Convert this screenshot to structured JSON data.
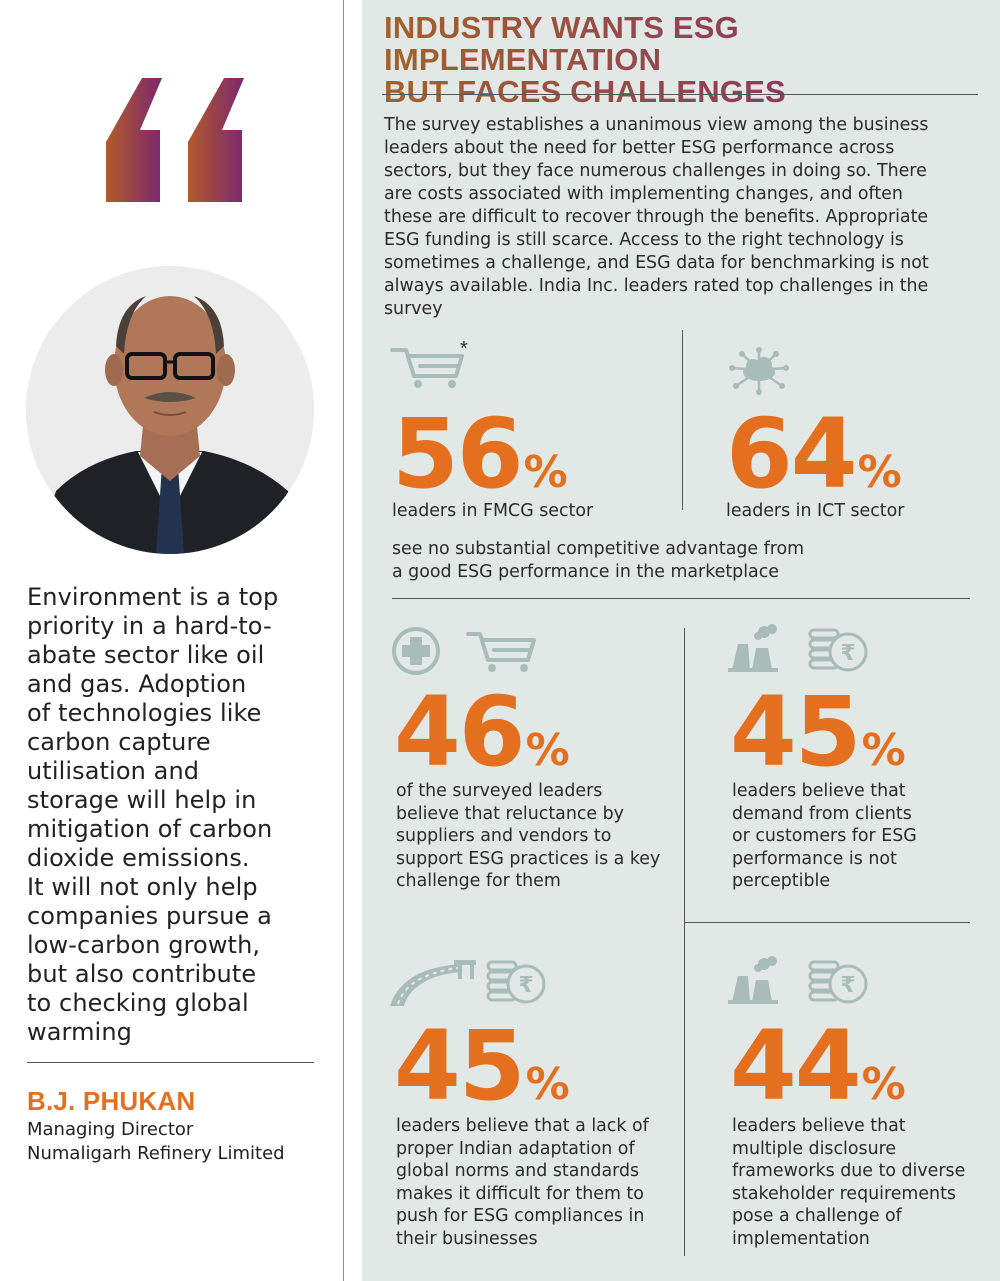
{
  "quote": {
    "mark_colors": {
      "start": "#b35a2a",
      "end": "#7b2770"
    },
    "lines": [
      "Environment is a top",
      "priority in a hard-to-",
      "abate sector like oil",
      "and gas. Adoption",
      "of technologies like",
      "carbon capture",
      "utilisation and",
      "storage will help in",
      "mitigation of carbon",
      "dioxide emissions.",
      "It will not only help",
      "companies pursue a",
      "low-carbon growth,",
      "but also contribute",
      "to checking global",
      "warming"
    ]
  },
  "author": {
    "name": "B.J. PHUKAN",
    "title": "Managing Director",
    "company": "Numaligarh Refinery Limited"
  },
  "heading": {
    "line1": "INDUSTRY WANTS ESG IMPLEMENTATION",
    "line2": "BUT FACES CHALLENGES"
  },
  "intro_lines": [
    "The survey establishes a unanimous view among the business",
    "leaders about the need for better ESG performance across",
    "sectors, but they face numerous challenges in doing so. There",
    "are costs associated with implementing changes, and often",
    "these are difficult to recover through the benefits. Appropriate",
    "ESG funding is still scarce. Access to the right technology is",
    "sometimes a challenge, and ESG data for benchmarking is not",
    "always available. India Inc. leaders rated top challenges in the",
    "survey"
  ],
  "stats": {
    "fmcg": {
      "value": "56",
      "unit": "%",
      "label": "leaders in FMCG sector",
      "asterisk": "*",
      "icons": [
        "cart-icon"
      ]
    },
    "ict": {
      "value": "64",
      "unit": "%",
      "label": "leaders in ICT sector",
      "icons": [
        "cloud-network-icon"
      ]
    },
    "shared_note_lines": [
      "see no substantial competitive advantage from",
      "a good ESG performance in the marketplace"
    ],
    "suppliers": {
      "value": "46",
      "unit": "%",
      "icons": [
        "medical-plus-icon",
        "cart-icon"
      ],
      "lines": [
        "of the surveyed leaders",
        "believe that reluctance by",
        "suppliers and vendors to",
        "support ESG practices is a key",
        "challenge for them"
      ]
    },
    "demand": {
      "value": "45",
      "unit": "%",
      "icons": [
        "factory-icon",
        "rupee-coins-icon"
      ],
      "lines": [
        "leaders believe that",
        "demand from clients",
        "or customers for ESG",
        "performance is not",
        "perceptible"
      ]
    },
    "adaptation": {
      "value": "45",
      "unit": "%",
      "icons": [
        "road-bridge-icon",
        "rupee-coins-icon"
      ],
      "lines": [
        "leaders believe that a lack of",
        "proper Indian adaptation of",
        "global norms and standards",
        "makes it difficult for them to",
        "push for ESG compliances in",
        "their businesses"
      ]
    },
    "disclosure": {
      "value": "44",
      "unit": "%",
      "icons": [
        "factory-icon",
        "rupee-coins-icon"
      ],
      "lines": [
        "leaders believe that",
        "multiple disclosure",
        "frameworks due to diverse",
        "stakeholder requirements",
        "pose a challenge of",
        "implementation"
      ]
    }
  },
  "colors": {
    "accent": "#e4701f",
    "panel": "#e1e8e5",
    "icon": "#a9bdb8"
  }
}
